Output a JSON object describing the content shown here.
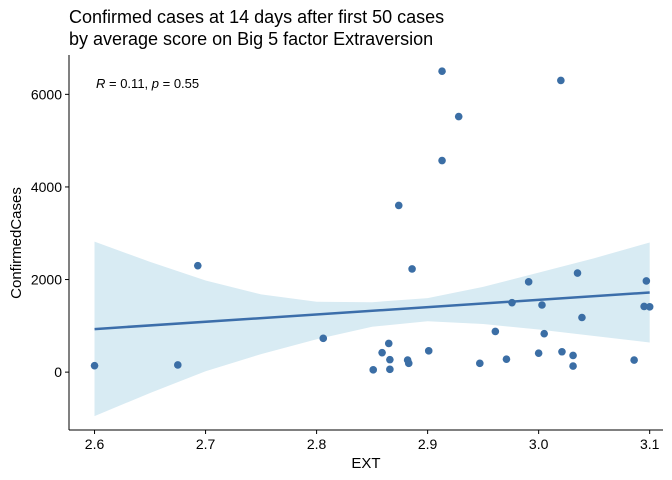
{
  "chart_data": {
    "type": "scatter",
    "title_line1": "Confirmed cases at 14 days after first 50 cases",
    "title_line2": "by average score on Big 5 factor Extraversion",
    "xlabel": "EXT",
    "ylabel": "ConfirmedCases",
    "annotation": {
      "r_symbol": "R",
      "r_text": " = 0.11, ",
      "p_symbol": "p",
      "p_text": " = 0.55"
    },
    "xlim": [
      2.577,
      3.112
    ],
    "ylim": [
      -1250,
      6850
    ],
    "x_ticks": [
      2.6,
      2.7,
      2.8,
      2.9,
      3.0,
      3.1
    ],
    "x_tick_labels": [
      "2.6",
      "2.7",
      "2.8",
      "2.9",
      "3.0",
      "3.1"
    ],
    "y_ticks": [
      0,
      2000,
      4000,
      6000
    ],
    "y_tick_labels": [
      "0",
      "2000",
      "4000",
      "6000"
    ],
    "grid": false,
    "colors": {
      "point": "#3b6ea5",
      "line": "#3c6eaa",
      "band": "#d8ebf3"
    },
    "points": [
      {
        "x": 2.6,
        "y": 140
      },
      {
        "x": 2.675,
        "y": 155
      },
      {
        "x": 2.693,
        "y": 2300
      },
      {
        "x": 2.806,
        "y": 730
      },
      {
        "x": 2.851,
        "y": 50
      },
      {
        "x": 2.859,
        "y": 420
      },
      {
        "x": 2.865,
        "y": 620
      },
      {
        "x": 2.866,
        "y": 270
      },
      {
        "x": 2.866,
        "y": 60
      },
      {
        "x": 2.874,
        "y": 3600
      },
      {
        "x": 2.882,
        "y": 260
      },
      {
        "x": 2.883,
        "y": 190
      },
      {
        "x": 2.886,
        "y": 2230
      },
      {
        "x": 2.901,
        "y": 460
      },
      {
        "x": 2.913,
        "y": 6500
      },
      {
        "x": 2.913,
        "y": 4570
      },
      {
        "x": 2.928,
        "y": 5520
      },
      {
        "x": 2.947,
        "y": 190
      },
      {
        "x": 2.961,
        "y": 880
      },
      {
        "x": 2.971,
        "y": 280
      },
      {
        "x": 2.976,
        "y": 1500
      },
      {
        "x": 2.991,
        "y": 1950
      },
      {
        "x": 3.0,
        "y": 410
      },
      {
        "x": 3.003,
        "y": 1450
      },
      {
        "x": 3.005,
        "y": 830
      },
      {
        "x": 3.02,
        "y": 6300
      },
      {
        "x": 3.021,
        "y": 440
      },
      {
        "x": 3.031,
        "y": 360
      },
      {
        "x": 3.031,
        "y": 130
      },
      {
        "x": 3.035,
        "y": 2140
      },
      {
        "x": 3.039,
        "y": 1180
      },
      {
        "x": 3.086,
        "y": 260
      },
      {
        "x": 3.095,
        "y": 1420
      },
      {
        "x": 3.097,
        "y": 1970
      },
      {
        "x": 3.1,
        "y": 1410
      }
    ],
    "regression": {
      "x": [
        2.6,
        3.1
      ],
      "y": [
        930,
        1720
      ]
    },
    "confidence_band": {
      "x": [
        2.6,
        2.65,
        2.7,
        2.75,
        2.8,
        2.85,
        2.9,
        2.95,
        3.0,
        3.05,
        3.1
      ],
      "upper": [
        2820,
        2380,
        1980,
        1680,
        1520,
        1510,
        1600,
        1840,
        2150,
        2460,
        2800
      ],
      "lower": [
        -950,
        -450,
        20,
        390,
        710,
        980,
        1100,
        1040,
        920,
        780,
        640
      ]
    }
  }
}
